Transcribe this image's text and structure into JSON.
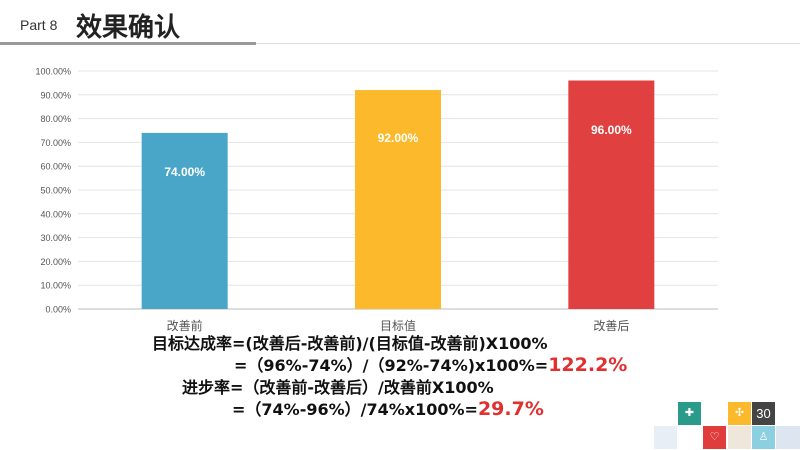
{
  "header": {
    "part": "Part 8",
    "title": "效果确认"
  },
  "chart_data": {
    "type": "bar",
    "categories": [
      "改善前",
      "目标值",
      "改善后"
    ],
    "values": [
      74,
      92,
      96
    ],
    "data_labels": [
      "74.00%",
      "92.00%",
      "96.00%"
    ],
    "colors": [
      "#4aa6c8",
      "#fbb92b",
      "#e04040"
    ],
    "ylim": [
      0,
      100
    ],
    "yticks": [
      "0.00%",
      "10.00%",
      "20.00%",
      "30.00%",
      "40.00%",
      "50.00%",
      "60.00%",
      "70.00%",
      "80.00%",
      "90.00%",
      "100.00%"
    ],
    "grid": true
  },
  "formulas": {
    "line1": "目标达成率=(改善后-改善前)/(目标值-改善前)X100%",
    "line2": "=（96%-74%）/（92%-74%)x100%=",
    "line2_result": "122.2%",
    "line3": "进步率=（改善前-改善后）/改善前X100%",
    "line4": "=（74%-96%）/74%x100%=",
    "line4_result": "29.7%"
  },
  "footer": {
    "page_number": "30"
  }
}
